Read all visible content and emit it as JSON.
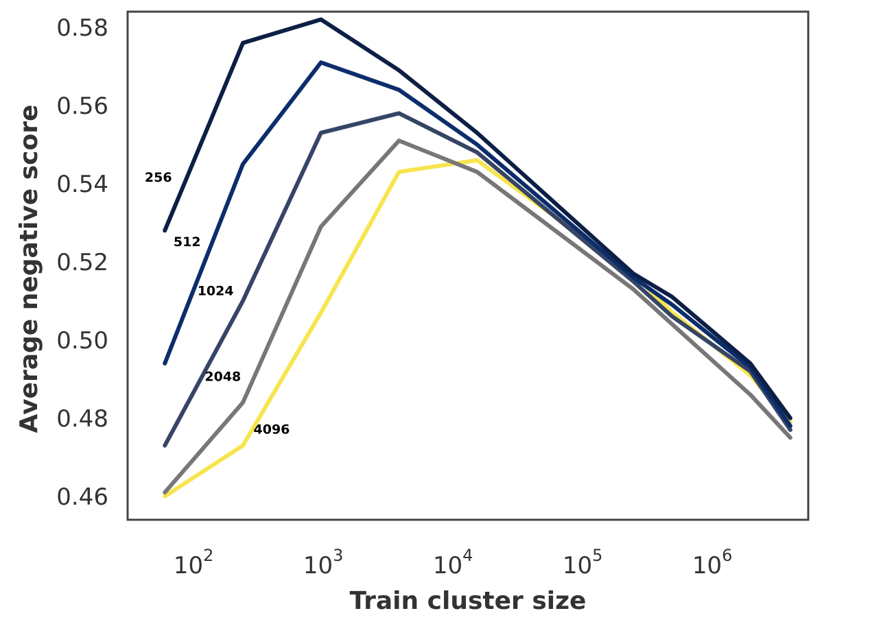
{
  "chart_data": {
    "type": "line",
    "xlabel": "Train cluster size",
    "ylabel": "Average negative score",
    "xscale": "log",
    "xlim": [
      31,
      5500000
    ],
    "ylim": [
      0.454,
      0.584
    ],
    "grid": false,
    "x": [
      60,
      240,
      960,
      3840,
      15360,
      245760,
      491520,
      1966080,
      4000000
    ],
    "x_ticks": [
      {
        "value": 100,
        "base": "10",
        "exp": "2"
      },
      {
        "value": 1000,
        "base": "10",
        "exp": "3"
      },
      {
        "value": 10000,
        "base": "10",
        "exp": "4"
      },
      {
        "value": 100000,
        "base": "10",
        "exp": "5"
      },
      {
        "value": 1000000,
        "base": "10",
        "exp": "6"
      }
    ],
    "y_ticks": [
      {
        "value": 0.46,
        "label": "0.46"
      },
      {
        "value": 0.48,
        "label": "0.48"
      },
      {
        "value": 0.5,
        "label": "0.50"
      },
      {
        "value": 0.52,
        "label": "0.52"
      },
      {
        "value": 0.54,
        "label": "0.54"
      },
      {
        "value": 0.56,
        "label": "0.56"
      },
      {
        "value": 0.58,
        "label": "0.58"
      }
    ],
    "series": [
      {
        "name": "256",
        "color": "#0d1f45",
        "values": [
          0.528,
          0.576,
          0.582,
          0.569,
          0.553,
          0.517,
          0.511,
          0.494,
          0.48
        ],
        "label_pos": [
          42,
          0.5405
        ]
      },
      {
        "name": "512",
        "color": "#0c2d6b",
        "values": [
          0.494,
          0.545,
          0.571,
          0.564,
          0.55,
          0.516,
          0.509,
          0.493,
          0.478
        ],
        "label_pos": [
          70,
          0.524
        ]
      },
      {
        "name": "1024",
        "color": "#364566",
        "values": [
          0.473,
          0.51,
          0.553,
          0.558,
          0.548,
          0.515,
          0.506,
          0.492,
          0.477
        ],
        "label_pos": [
          107,
          0.5115
        ]
      },
      {
        "name": "2048",
        "color": "#777777",
        "values": [
          0.461,
          0.484,
          0.529,
          0.551,
          0.543,
          0.513,
          0.504,
          0.486,
          0.475
        ],
        "label_pos": [
          122,
          0.4895
        ]
      },
      {
        "name": "4096",
        "color": "#f7e44f",
        "values": [
          0.46,
          0.473,
          0.507,
          0.543,
          0.546,
          0.517,
          0.507,
          0.491,
          0.479
        ],
        "label_pos": [
          290,
          0.476
        ]
      }
    ]
  }
}
